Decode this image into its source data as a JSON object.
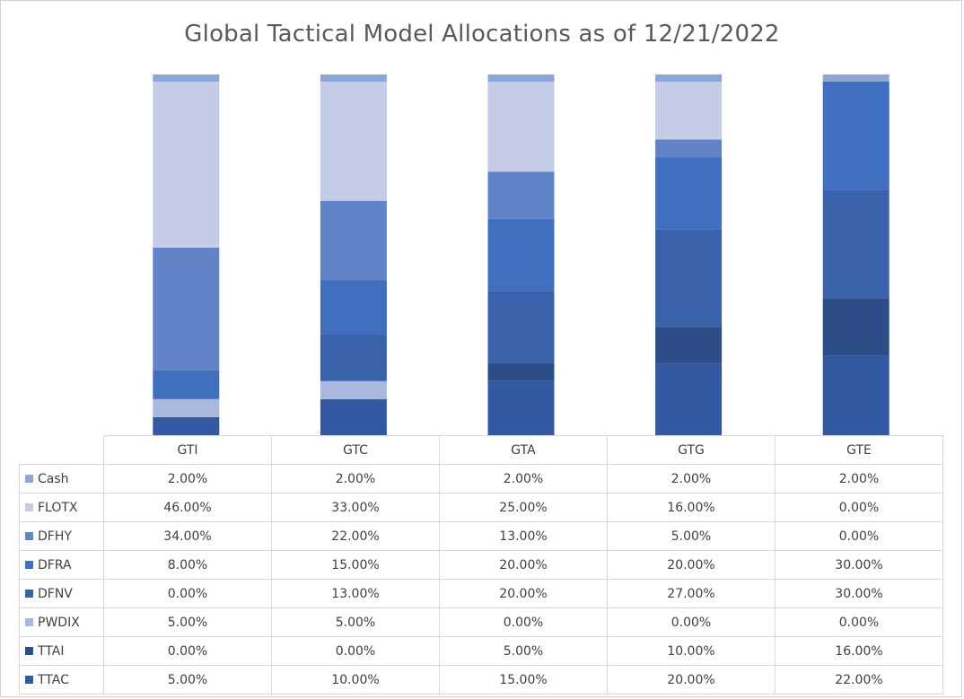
{
  "chart_data": {
    "type": "bar",
    "stacked": true,
    "title": "Global Tactical Model Allocations as of 12/21/2022",
    "categories": [
      "GTI",
      "GTC",
      "GTA",
      "GTG",
      "GTE"
    ],
    "ylim": [
      0,
      100
    ],
    "stack_order_bottom_to_top": [
      "TTAC",
      "TTAI",
      "PWDIX",
      "DFNV",
      "DFRA",
      "DFHY",
      "FLOTX",
      "Cash"
    ],
    "series": [
      {
        "name": "Cash",
        "color": "#8ea5d6",
        "values": [
          2,
          2,
          2,
          2,
          2
        ],
        "labels": [
          "2.00%",
          "2.00%",
          "2.00%",
          "2.00%",
          "2.00%"
        ]
      },
      {
        "name": "FLOTX",
        "color": "#c5cde6",
        "values": [
          46,
          33,
          25,
          16,
          0
        ],
        "labels": [
          "46.00%",
          "33.00%",
          "25.00%",
          "16.00%",
          "0.00%"
        ]
      },
      {
        "name": "DFHY",
        "color": "#6283c8",
        "values": [
          34,
          22,
          13,
          5,
          0
        ],
        "labels": [
          "34.00%",
          "22.00%",
          "13.00%",
          "5.00%",
          "0.00%"
        ]
      },
      {
        "name": "DFRA",
        "color": "#3f6fbe",
        "values": [
          8,
          15,
          20,
          20,
          30
        ],
        "labels": [
          "8.00%",
          "15.00%",
          "20.00%",
          "20.00%",
          "30.00%"
        ]
      },
      {
        "name": "DFNV",
        "color": "#3a62aa",
        "values": [
          0,
          13,
          20,
          27,
          30
        ],
        "labels": [
          "0.00%",
          "13.00%",
          "20.00%",
          "27.00%",
          "30.00%"
        ]
      },
      {
        "name": "PWDIX",
        "color": "#aab8de",
        "values": [
          5,
          5,
          0,
          0,
          0
        ],
        "labels": [
          "5.00%",
          "5.00%",
          "0.00%",
          "0.00%",
          "0.00%"
        ]
      },
      {
        "name": "TTAI",
        "color": "#2d4d89",
        "values": [
          0,
          0,
          5,
          10,
          16
        ],
        "labels": [
          "0.00%",
          "0.00%",
          "5.00%",
          "10.00%",
          "16.00%"
        ]
      },
      {
        "name": "TTAC",
        "color": "#3459a3",
        "values": [
          5,
          10,
          15,
          20,
          22
        ],
        "labels": [
          "5.00%",
          "10.00%",
          "15.00%",
          "20.00%",
          "22.00%"
        ]
      }
    ]
  }
}
